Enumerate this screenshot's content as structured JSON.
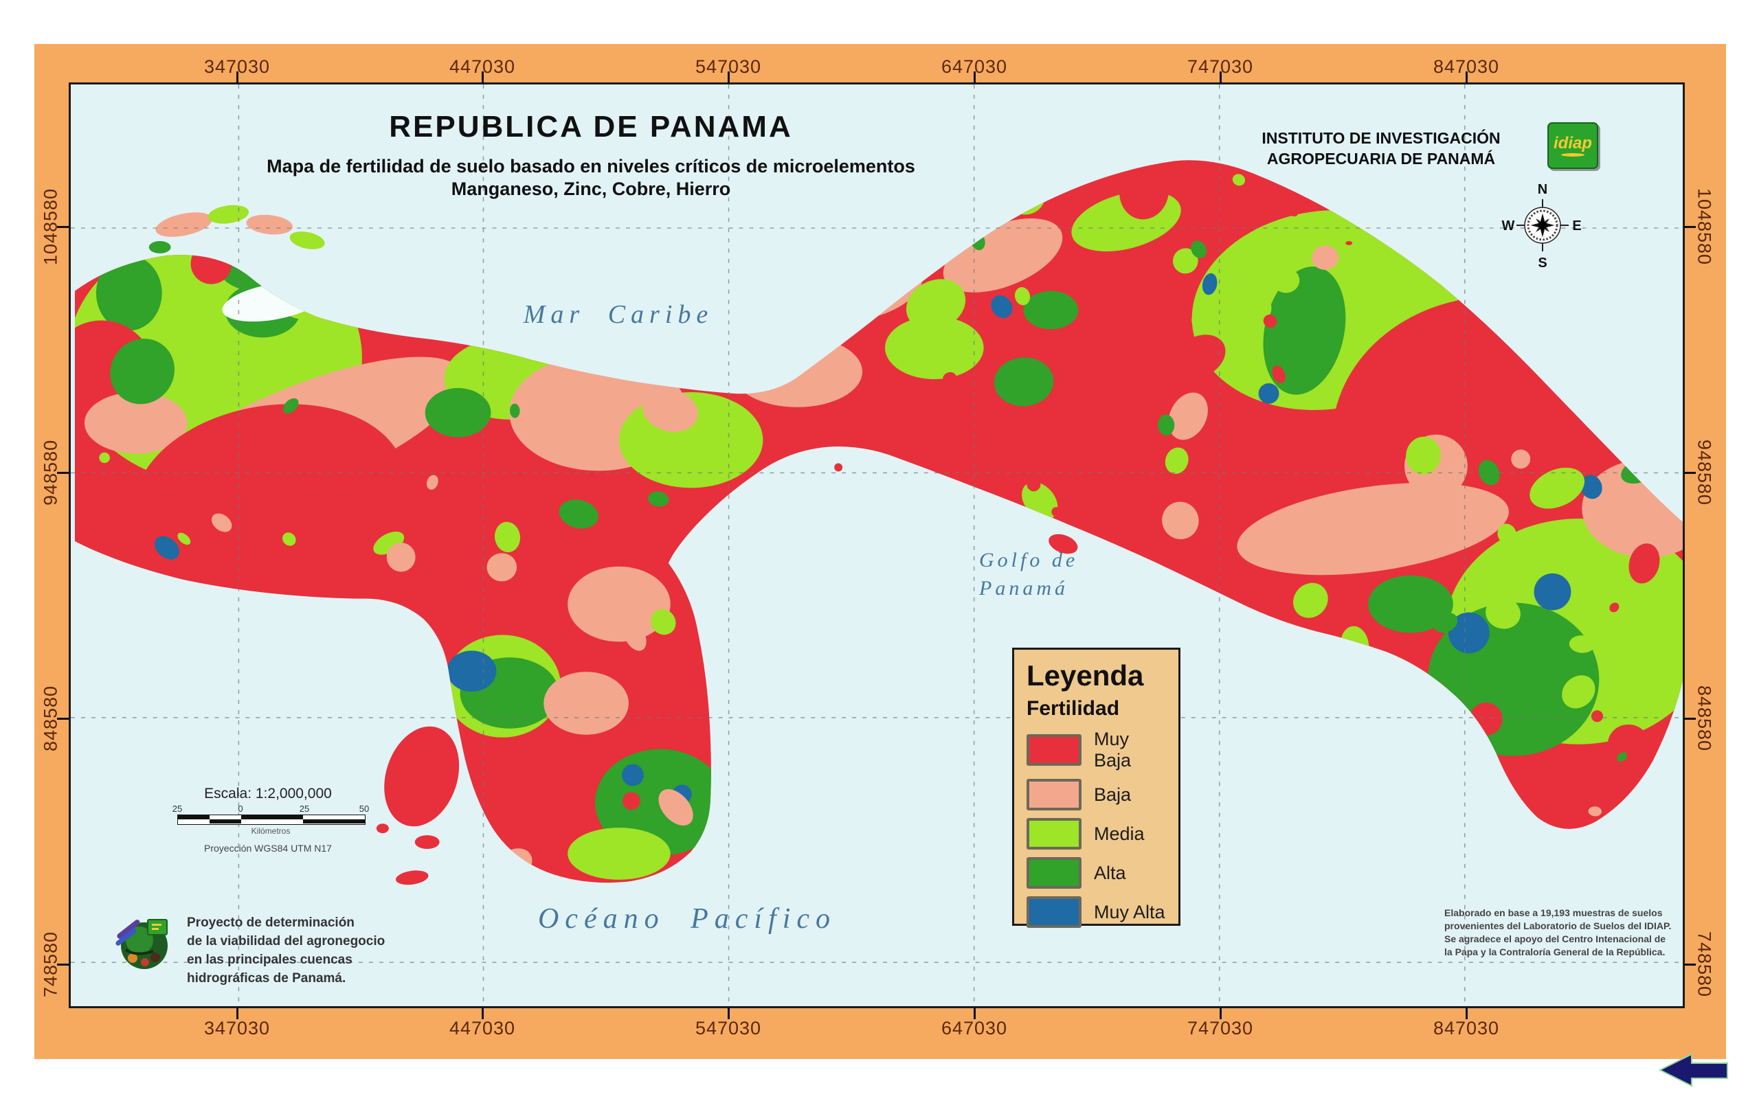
{
  "frame": {
    "color": "#f6aa5f",
    "border_color": "#1b1b1b"
  },
  "axes": {
    "x_ticks": [
      "347030",
      "447030",
      "547030",
      "647030",
      "747030",
      "847030"
    ],
    "y_ticks": [
      "1048580",
      "948580",
      "848580",
      "748580"
    ]
  },
  "title_block": {
    "title": "REPUBLICA DE PANAMA",
    "subtitle_line1": "Mapa de fertilidad de suelo basado en niveles críticos de microelementos",
    "subtitle_line2": "Manganeso, Zinc, Cobre, Hierro"
  },
  "institute": {
    "line1": "INSTITUTO DE INVESTIGACIÓN",
    "line2": "AGROPECUARIA DE PANAMÁ",
    "logo_text": "idiap"
  },
  "compass": {
    "north": "N",
    "east": "E",
    "south": "S",
    "west": "W"
  },
  "sea_labels": {
    "caribbean": "Mar Caribe",
    "gulf_line1": "Golfo de",
    "gulf_line2": "Panamá",
    "pacific": "Océano Pacífico"
  },
  "legend": {
    "title": "Leyenda",
    "subtitle": "Fertilidad",
    "items": [
      {
        "label": "Muy Baja",
        "color": "#e7303b"
      },
      {
        "label": "Baja",
        "color": "#f3a88e"
      },
      {
        "label": "Media",
        "color": "#9ee427"
      },
      {
        "label": "Alta",
        "color": "#31a22a"
      },
      {
        "label": "Muy Alta",
        "color": "#1e6ba6"
      }
    ]
  },
  "scale": {
    "title": "Escala: 1:2,000,000",
    "tick_labels": [
      "25",
      "0",
      "25",
      "50"
    ],
    "unit": "Kilómetros",
    "projection": "Proyección WGS84 UTM N17"
  },
  "project": {
    "line1": "Proyecto de determinación",
    "line2": "de la viabilidad del agronegocio",
    "line3": "en las principales cuencas",
    "line4": "hidrográficas de Panamá."
  },
  "credits": {
    "line1": "Elaborado en base a 19,193 muestras de suelos",
    "line2": "provenientes del Laboratorio de Suelos del IDIAP.",
    "line3": "Se agradece el apoyo del Centro Intenacional de",
    "line4": "la Papa y la Contraloría General de la República."
  },
  "map_colors": {
    "water": "#e2f3f6",
    "lake": "#f7fcfd",
    "grid": "#6a7a7a"
  }
}
